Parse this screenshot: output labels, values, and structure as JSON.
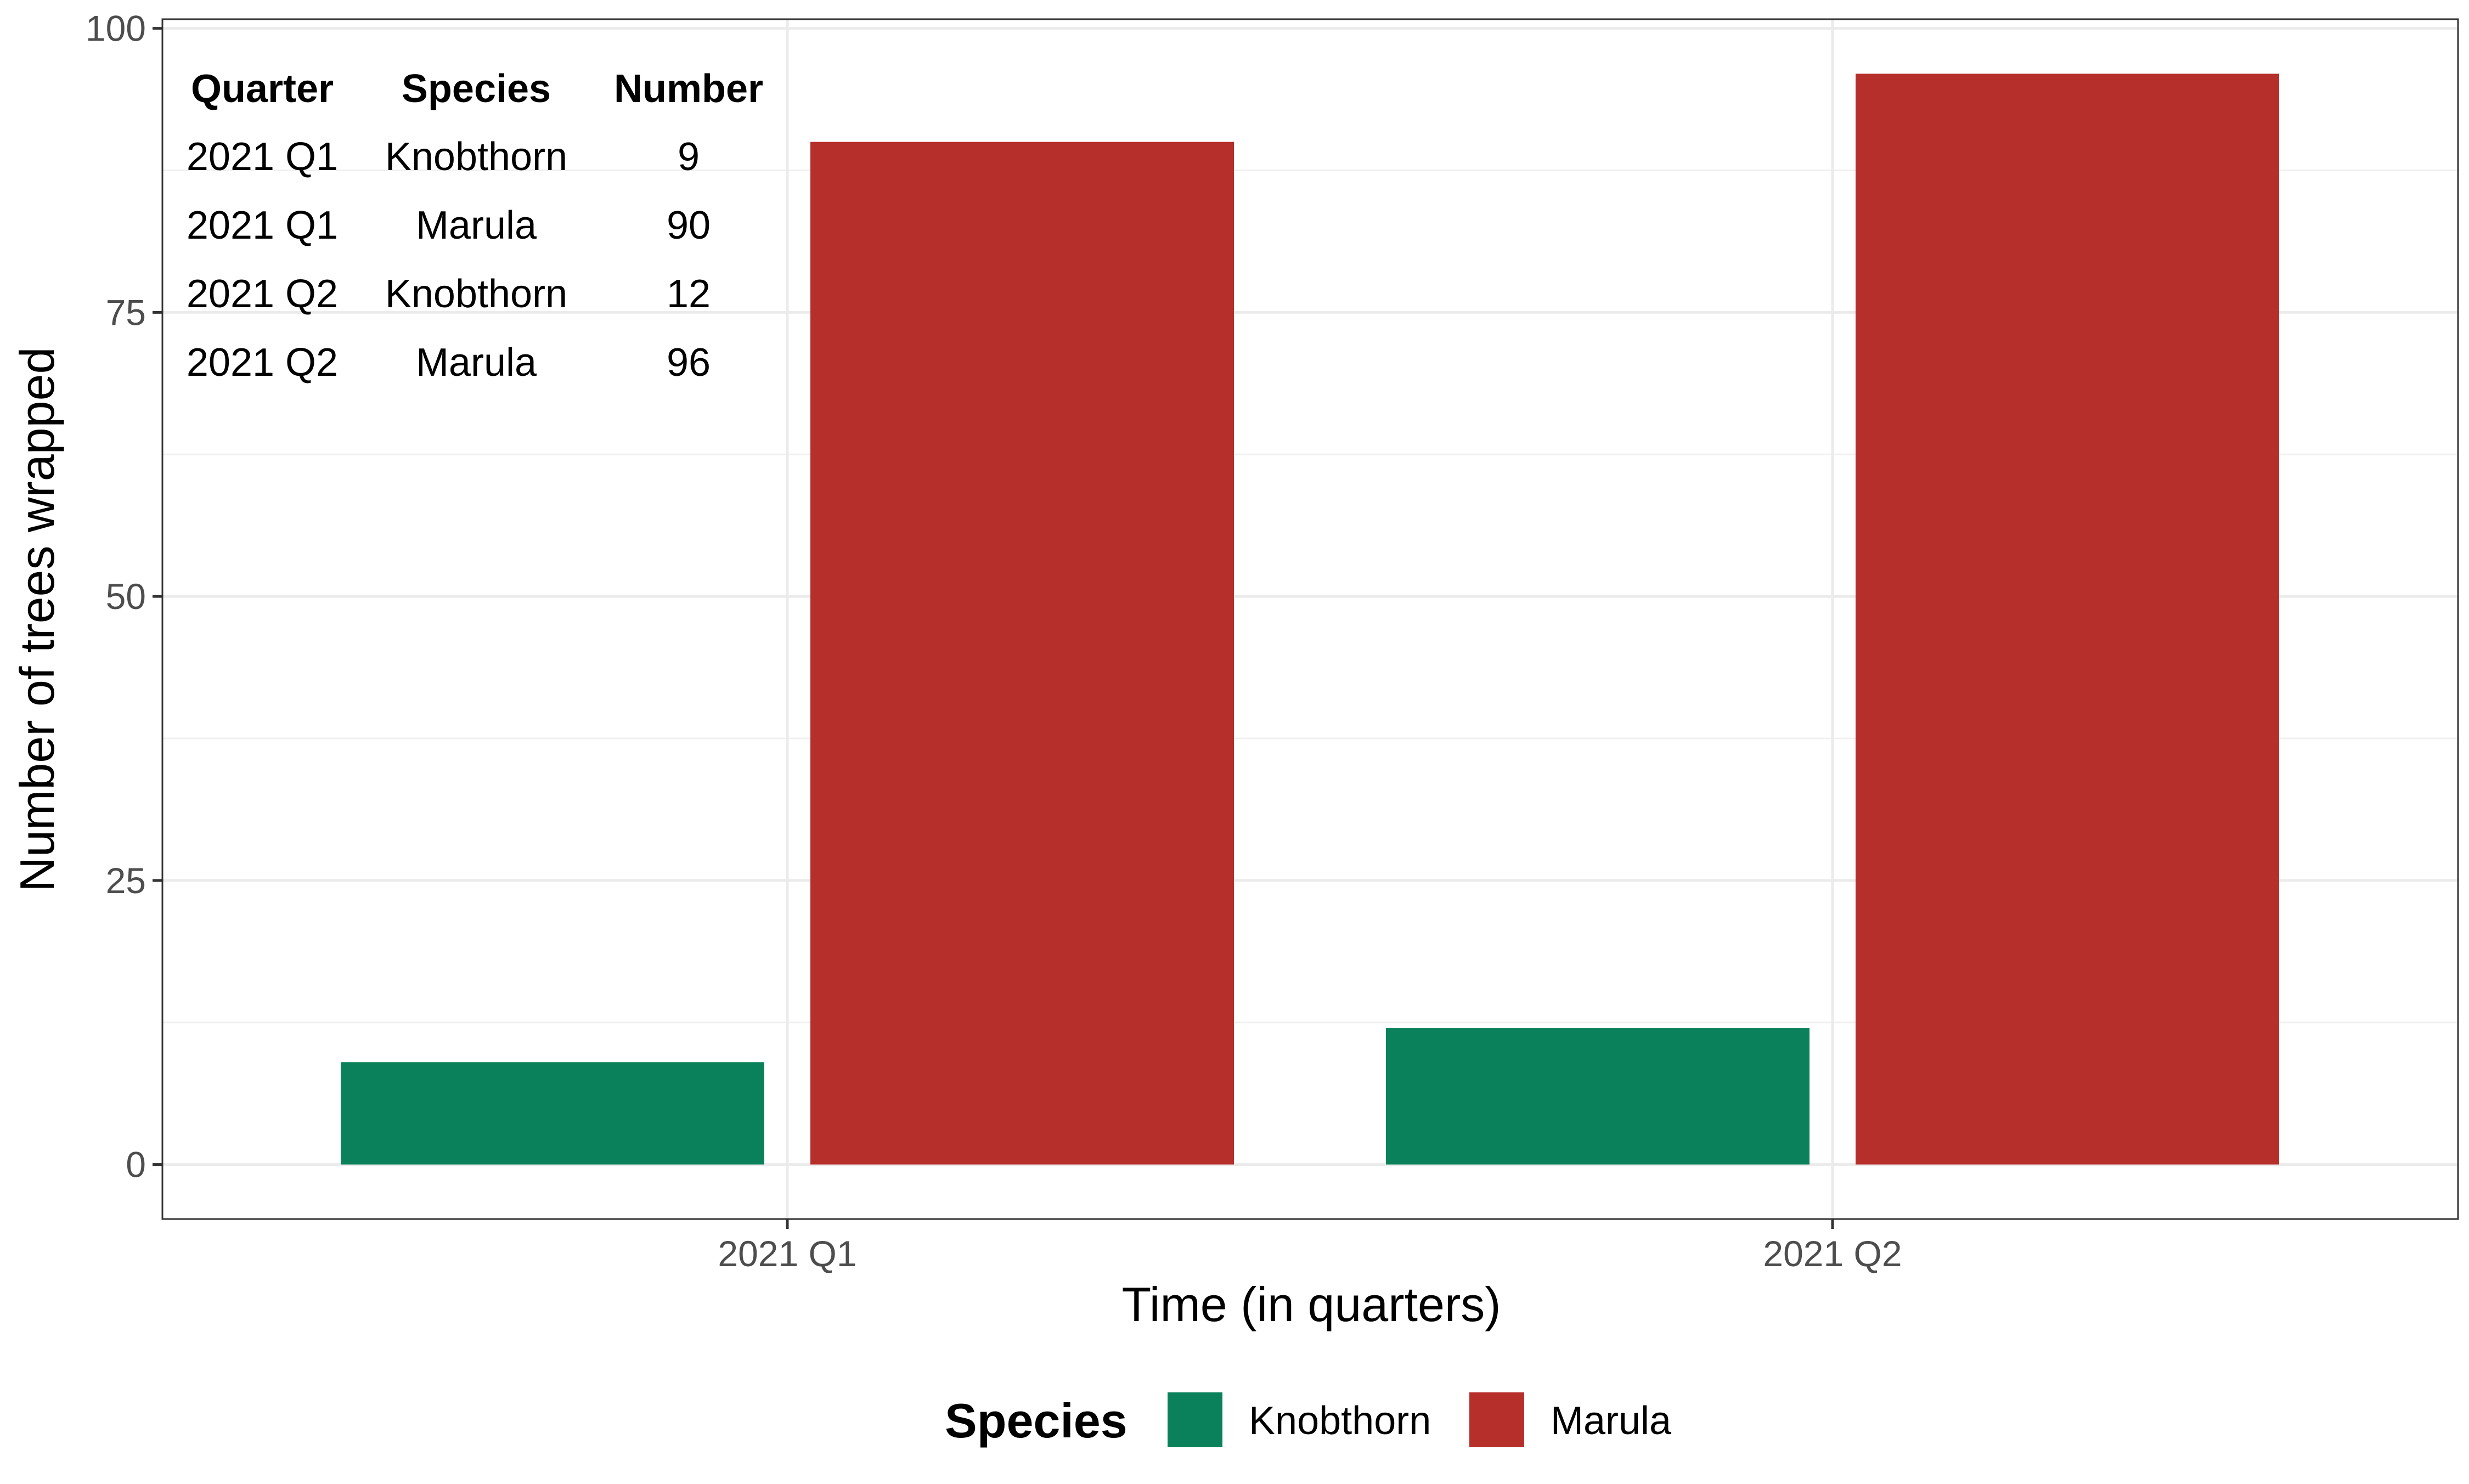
{
  "chart_data": {
    "type": "bar",
    "categories": [
      "2021 Q1",
      "2021 Q2"
    ],
    "series": [
      {
        "name": "Knobthorn",
        "values": [
          9,
          12
        ],
        "color": "#0a815a"
      },
      {
        "name": "Marula",
        "values": [
          90,
          96
        ],
        "color": "#b72f2b"
      }
    ],
    "xlabel": "Time (in quarters)",
    "ylabel": "Number of trees wrapped",
    "ylim": [
      -4.8,
      100.8
    ],
    "yticks": [
      0,
      25,
      50,
      75,
      100
    ],
    "grid": true,
    "legend": {
      "title": "Species",
      "position": "bottom"
    },
    "table": {
      "headers": [
        "Quarter",
        "Species",
        "Number"
      ],
      "rows": [
        [
          "2021 Q1",
          "Knobthorn",
          "9"
        ],
        [
          "2021 Q1",
          "Marula",
          "90"
        ],
        [
          "2021 Q2",
          "Knobthorn",
          "12"
        ],
        [
          "2021 Q2",
          "Marula",
          "96"
        ]
      ]
    }
  }
}
